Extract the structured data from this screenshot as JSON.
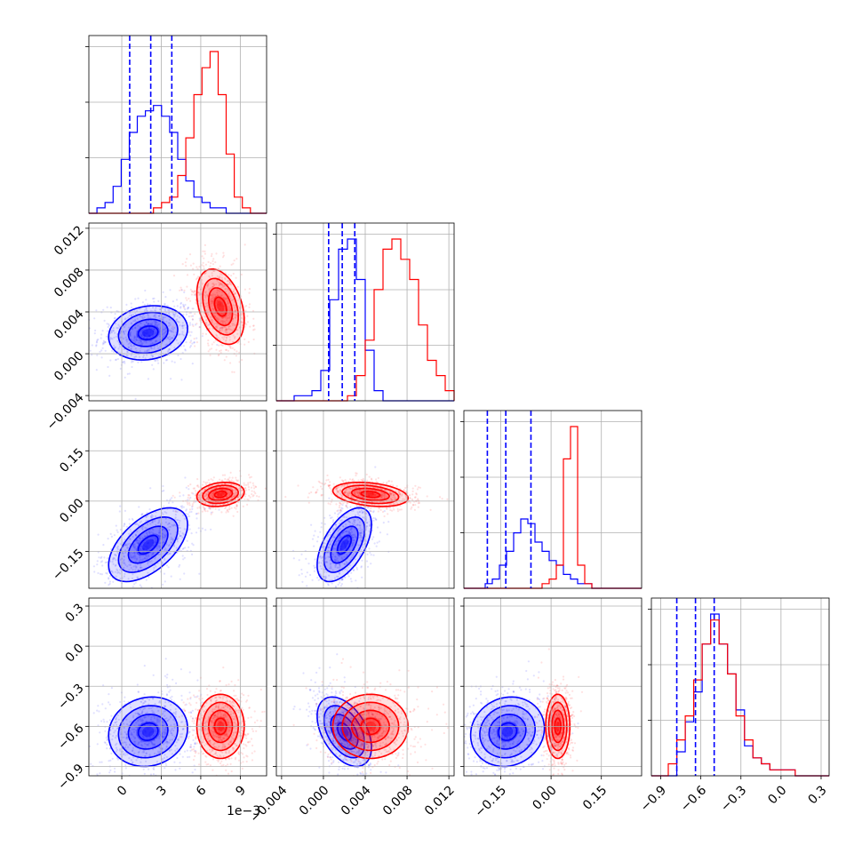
{
  "chart_data": {
    "type": "corner",
    "colors": {
      "series_a": "#0000ff",
      "series_b": "#ff0000",
      "grid": "#b0b0b0",
      "axes": "#000000"
    },
    "series": [
      {
        "color": "#0000ff",
        "means": [
          2.0,
          0.002,
          -0.13,
          -0.64
        ],
        "sds": [
          1.5,
          0.0013,
          0.055,
          0.13
        ],
        "quantiles": [
          [
            0.6,
            2.2,
            3.8
          ],
          [
            0.0005,
            0.0018,
            0.003
          ],
          [
            -0.19,
            -0.135,
            -0.06
          ],
          [
            -0.78,
            -0.64,
            -0.5
          ]
        ],
        "corr": [
          [
            0,
            0.15,
            0.55,
            0.1
          ],
          [
            0.15,
            0,
            0.55,
            -0.45
          ],
          [
            0.55,
            0.55,
            0,
            0.1
          ],
          [
            0.1,
            -0.45,
            0.1,
            0
          ]
        ]
      },
      {
        "color": "#ff0000",
        "means": [
          7.5,
          0.0045,
          0.02,
          -0.6
        ],
        "sds": [
          0.9,
          0.0018,
          0.018,
          0.12
        ],
        "corr": [
          [
            0,
            -0.35,
            0.2,
            0.0
          ],
          [
            -0.35,
            0,
            -0.3,
            0.0
          ],
          [
            0.2,
            -0.3,
            0,
            0.0
          ],
          [
            0.0,
            0.0,
            0.0,
            0
          ]
        ]
      }
    ],
    "hist_1d": {
      "series_a": [
        [
          0,
          1,
          2,
          5,
          10,
          15,
          18,
          19,
          20,
          18,
          15,
          10,
          6,
          3,
          2,
          1,
          1,
          0,
          0,
          0,
          0,
          0
        ],
        [
          0,
          0,
          1,
          1,
          2,
          6,
          20,
          30,
          32,
          24,
          10,
          2,
          0,
          0,
          0,
          0,
          0,
          0,
          0,
          0
        ],
        [
          0,
          0,
          0,
          1,
          2,
          5,
          8,
          12,
          15,
          14,
          10,
          8,
          6,
          5,
          3,
          2,
          1,
          1,
          0,
          0,
          0,
          0,
          0,
          0,
          0
        ],
        [
          0,
          0,
          0,
          4,
          9,
          14,
          22,
          27,
          22,
          17,
          11,
          5,
          3,
          2,
          1,
          1,
          1,
          0,
          0,
          0,
          0
        ]
      ],
      "series_b": [
        [
          0,
          0,
          0,
          0,
          0,
          0,
          0,
          0,
          1,
          2,
          3,
          7,
          14,
          22,
          27,
          30,
          22,
          11,
          3,
          1,
          0,
          0
        ],
        [
          0,
          0,
          0,
          0,
          0,
          0,
          0,
          0,
          1,
          5,
          12,
          22,
          30,
          32,
          28,
          24,
          15,
          8,
          5,
          2
        ],
        [
          0,
          0,
          0,
          0,
          0,
          0,
          0,
          0,
          0,
          0,
          0,
          1,
          2,
          5,
          28,
          35,
          5,
          1,
          0,
          0,
          0,
          0,
          0,
          0,
          0
        ],
        [
          0,
          0,
          2,
          6,
          10,
          16,
          22,
          26,
          22,
          17,
          10,
          6,
          3,
          2,
          1,
          1,
          1,
          0,
          0,
          0,
          0
        ]
      ]
    },
    "axes": [
      {
        "range": [
          -2.5,
          11.0
        ],
        "ticks": [
          0,
          3,
          6,
          9
        ],
        "tick_labels": [
          "0",
          "3",
          "6",
          "9"
        ],
        "offset_label": "1e−3"
      },
      {
        "range": [
          -0.0045,
          0.0125
        ],
        "ticks": [
          -0.004,
          0.0,
          0.004,
          0.008,
          0.012
        ],
        "tick_labels": [
          "−0.004",
          "0.000",
          "0.004",
          "0.008",
          "0.012"
        ]
      },
      {
        "range": [
          -0.26,
          0.27
        ],
        "ticks": [
          -0.15,
          0.0,
          0.15
        ],
        "tick_labels": [
          "−0.15",
          "0.00",
          "0.15"
        ]
      },
      {
        "range": [
          -0.97,
          0.36
        ],
        "ticks": [
          -0.9,
          -0.6,
          -0.3,
          0.0,
          0.3
        ],
        "tick_labels": [
          "−0.9",
          "−0.6",
          "−0.3",
          "0.0",
          "0.3"
        ]
      }
    ],
    "grid": true,
    "legend": "none"
  }
}
